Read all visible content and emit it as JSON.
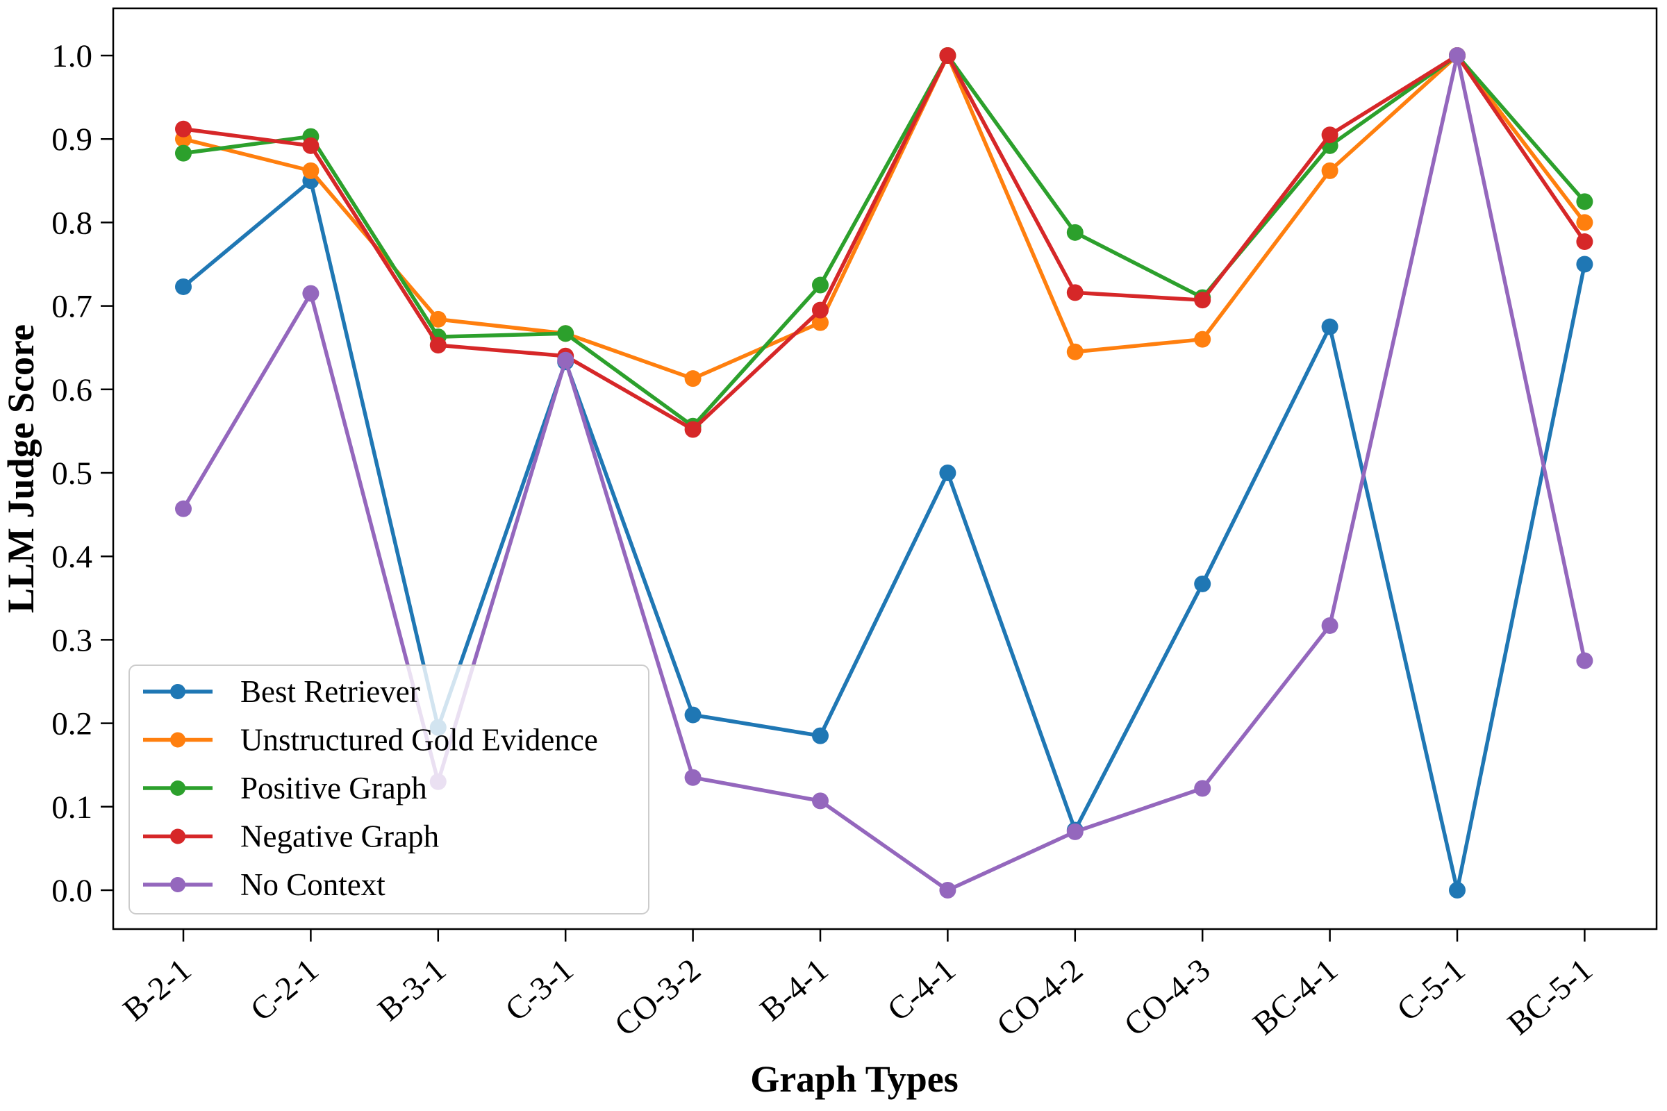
{
  "chart_data": {
    "type": "line",
    "title": "",
    "xlabel": "Graph Types",
    "ylabel": "LLM Judge Score",
    "ylim": [
      -0.05,
      1.05
    ],
    "grid": false,
    "legend_position": "lower-left",
    "ytick_labels": [
      "0.0",
      "0.1",
      "0.2",
      "0.3",
      "0.4",
      "0.5",
      "0.6",
      "0.7",
      "0.8",
      "0.9",
      "1.0"
    ],
    "categories": [
      "B-2-1",
      "C-2-1",
      "B-3-1",
      "C-3-1",
      "CO-3-2",
      "B-4-1",
      "C-4-1",
      "CO-4-2",
      "CO-4-3",
      "BC-4-1",
      "C-5-1",
      "BC-5-1"
    ],
    "series": [
      {
        "name": "Best Retriever",
        "color": "#1f77b4",
        "values": [
          0.723,
          0.85,
          0.195,
          0.633,
          0.21,
          0.185,
          0.5,
          0.072,
          0.367,
          0.675,
          0.0,
          0.75
        ]
      },
      {
        "name": "Unstructured Gold Evidence",
        "color": "#ff7f0e",
        "values": [
          0.9,
          0.862,
          0.684,
          0.667,
          0.613,
          0.68,
          1.0,
          0.645,
          0.66,
          0.862,
          1.0,
          0.8
        ]
      },
      {
        "name": "Positive Graph",
        "color": "#2ca02c",
        "values": [
          0.883,
          0.903,
          0.663,
          0.667,
          0.556,
          0.725,
          1.0,
          0.788,
          0.71,
          0.892,
          1.0,
          0.825
        ]
      },
      {
        "name": "Negative Graph",
        "color": "#d62728",
        "values": [
          0.912,
          0.892,
          0.653,
          0.64,
          0.552,
          0.695,
          1.0,
          0.716,
          0.707,
          0.905,
          1.0,
          0.777
        ]
      },
      {
        "name": "No Context",
        "color": "#9467bd",
        "values": [
          0.457,
          0.715,
          0.13,
          0.635,
          0.135,
          0.107,
          0.0,
          0.07,
          0.122,
          0.317,
          1.0,
          0.275
        ]
      }
    ]
  },
  "style": {
    "background": "#ffffff",
    "spine_color": "#000000",
    "legend_border": "#cccccc",
    "legend_fill_alpha": 0.8
  }
}
